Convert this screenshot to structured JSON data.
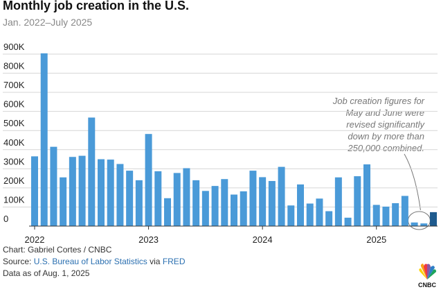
{
  "chart_data": {
    "type": "bar",
    "title": "Monthly job creation in the U.S.",
    "subtitle": "Jan. 2022–July 2025",
    "categories": [
      "2022",
      null,
      null,
      null,
      null,
      null,
      null,
      null,
      null,
      null,
      null,
      null,
      "2023",
      null,
      null,
      null,
      null,
      null,
      null,
      null,
      null,
      null,
      null,
      null,
      "2024",
      null,
      null,
      null,
      null,
      null,
      null,
      null,
      null,
      null,
      null,
      null,
      "2025",
      null,
      null,
      null,
      null,
      null,
      null
    ],
    "values": [
      365,
      904,
      415,
      255,
      362,
      368,
      568,
      350,
      348,
      325,
      290,
      240,
      482,
      287,
      146,
      278,
      303,
      240,
      184,
      210,
      246,
      165,
      182,
      290,
      256,
      236,
      310,
      108,
      218,
      118,
      144,
      78,
      255,
      44,
      261,
      323,
      111,
      102,
      120,
      158,
      19,
      14,
      73
    ],
    "colors": [
      "#4a9ad8",
      "#4a9ad8",
      "#4a9ad8",
      "#4a9ad8",
      "#4a9ad8",
      "#4a9ad8",
      "#4a9ad8",
      "#4a9ad8",
      "#4a9ad8",
      "#4a9ad8",
      "#4a9ad8",
      "#4a9ad8",
      "#4a9ad8",
      "#4a9ad8",
      "#4a9ad8",
      "#4a9ad8",
      "#4a9ad8",
      "#4a9ad8",
      "#4a9ad8",
      "#4a9ad8",
      "#4a9ad8",
      "#4a9ad8",
      "#4a9ad8",
      "#4a9ad8",
      "#4a9ad8",
      "#4a9ad8",
      "#4a9ad8",
      "#4a9ad8",
      "#4a9ad8",
      "#4a9ad8",
      "#4a9ad8",
      "#4a9ad8",
      "#4a9ad8",
      "#4a9ad8",
      "#4a9ad8",
      "#4a9ad8",
      "#4a9ad8",
      "#4a9ad8",
      "#4a9ad8",
      "#4a9ad8",
      "#4a9ad8",
      "#4a9ad8",
      "#1f5b8e"
    ],
    "ylim": [
      0,
      900
    ],
    "yticks": [
      0,
      {
        "value": 100,
        "label": "100K"
      },
      {
        "value": 200,
        "label": "200K"
      },
      {
        "value": 300,
        "label": "300K"
      },
      {
        "value": 400,
        "label": "400K"
      },
      {
        "value": 500,
        "label": "500K"
      },
      {
        "value": 600,
        "label": "600K"
      },
      {
        "value": 700,
        "label": "700K"
      },
      {
        "value": 800,
        "label": "800K"
      },
      {
        "value": 900,
        "label": "900K"
      }
    ],
    "grid": true,
    "annotation": [
      "Job creation figures for",
      "May and June were",
      "revised significantly",
      "down by more than",
      "250,000 combined."
    ],
    "footer": {
      "credit": "Chart: Gabriel Cortes / CNBC",
      "source_prefix": "Source: ",
      "source": "U.S. Bureau of Labor Statistics",
      "source_via": " via ",
      "source_link2": "FRED",
      "date": "Data as of Aug. 1, 2025",
      "logo": "CNBC"
    }
  }
}
